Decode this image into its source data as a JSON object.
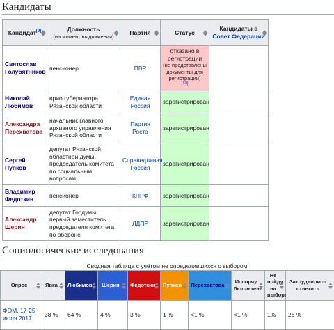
{
  "candidates": {
    "heading": "Кандидаты",
    "header": {
      "candidate": "Кандидат",
      "candidate_ref": "[9]",
      "position": "Должность",
      "position_note": "(на момент выдвижения)",
      "party": "Партия",
      "status": "Статус",
      "federation": "Кандидаты в",
      "federation_link": "Совет Федерации"
    },
    "rows": [
      {
        "name": "Святослав Голубятников",
        "position": "пенсионер",
        "party": "ПВР",
        "status": "отказано в регистрации",
        "status_note": "(не представлены документы для регистрации)",
        "status_ref": "[10]"
      },
      {
        "name": "Николай Любимов",
        "position": "врио губернатора Рязанской области",
        "party": "Единая Россия",
        "status": "зарегистрирован"
      },
      {
        "name": "Александра Перехватова",
        "position": "начальник главного архивного управления Рязанской области",
        "party": "Партия Роста",
        "status": "зарегистрирован"
      },
      {
        "name": "Сергей Пупков",
        "position": "депутат Рязанской областной думы, председатель комитета по социальным вопросам",
        "party": "Справедливая Россия",
        "status": "зарегистрирован"
      },
      {
        "name": "Владимир Федоткин",
        "position": "пенсионер",
        "party": "КПРФ",
        "status": "зарегистрирован"
      },
      {
        "name": "Александр Шерин",
        "position": "депутат Госдумы, первый заместитель председателя комитета по обороне",
        "party": "ЛДПР",
        "status": "зарегистрирован"
      }
    ]
  },
  "polls": {
    "heading": "Социологические исследования",
    "caption": "Сводная таблица с учётом не определившихся с выбором",
    "header": [
      "Опрос",
      "Явка",
      "Любимов",
      "Шерин",
      "Федоткин",
      "Пупков",
      "Перехватова",
      "Испорчу бюллетень",
      "Не пойду на выборы",
      "Затруднились ответить"
    ],
    "rows": [
      [
        "ФОМ, 17-25 июля 2017",
        "38 %",
        "64 %",
        "4 %",
        "3 %",
        "1 %",
        "<1 %",
        "<1 %",
        "1%",
        "26 %"
      ]
    ]
  }
}
